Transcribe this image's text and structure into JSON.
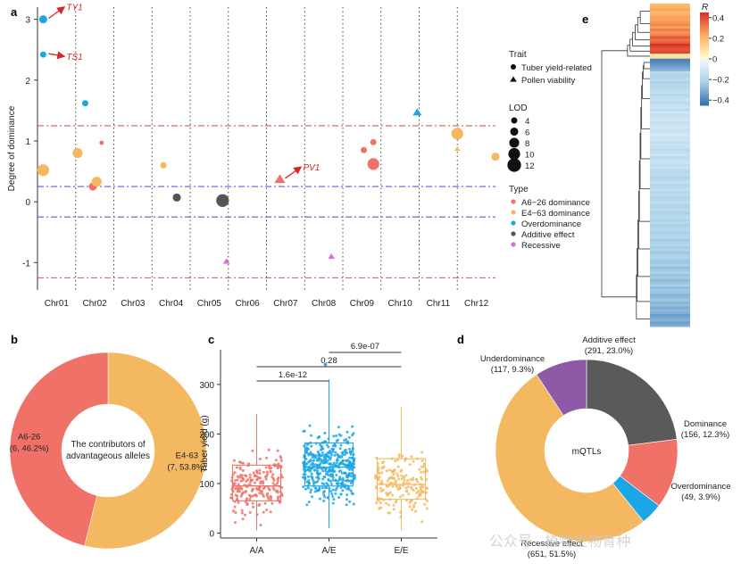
{
  "watermark": "公众号 · 植物生物育种",
  "colors": {
    "a6": "#f07167",
    "e4": "#f4b860",
    "over": "#1ba7e6",
    "add": "#555555",
    "rec": "#d66fd6",
    "under": "#8e5aa8",
    "addDark": "#5a5a5a",
    "redLine": "#e05656",
    "blueLine": "#5a5ae0"
  },
  "panel_labels": {
    "a": "a",
    "b": "b",
    "c": "c",
    "d": "d",
    "e": "e"
  },
  "chart_data": [
    {
      "id": "a",
      "type": "scatter",
      "title": "",
      "ylabel": "Degree of dominance",
      "xlabel": "",
      "ylim": [
        -1.45,
        3.2
      ],
      "yticks": [
        -1,
        0,
        1,
        2,
        3
      ],
      "categories": [
        "Chr01",
        "Chr02",
        "Chr03",
        "Chr04",
        "Chr05",
        "Chr06",
        "Chr07",
        "Chr08",
        "Chr09",
        "Chr10",
        "Chr11",
        "Chr12"
      ],
      "hlines": [
        {
          "y": 1.25,
          "color": "red"
        },
        {
          "y": -1.25,
          "color": "red"
        },
        {
          "y": 0.25,
          "color": "blue"
        },
        {
          "y": -0.25,
          "color": "blue"
        }
      ],
      "points": [
        {
          "x": 0.15,
          "y": 3.0,
          "shape": "circle",
          "type": "over",
          "lod": 6
        },
        {
          "x": 0.15,
          "y": 2.42,
          "shape": "circle",
          "type": "over",
          "lod": 4
        },
        {
          "x": 0.15,
          "y": 0.52,
          "shape": "circle",
          "type": "e4",
          "lod": 10
        },
        {
          "x": 1.25,
          "y": 1.62,
          "shape": "circle",
          "type": "over",
          "lod": 4
        },
        {
          "x": 1.05,
          "y": 0.8,
          "shape": "circle",
          "type": "e4",
          "lod": 8
        },
        {
          "x": 1.45,
          "y": 0.25,
          "shape": "circle",
          "type": "a6",
          "lod": 6
        },
        {
          "x": 1.55,
          "y": 0.33,
          "shape": "circle",
          "type": "e4",
          "lod": 8
        },
        {
          "x": 1.68,
          "y": 0.97,
          "shape": "circle",
          "type": "a6",
          "lod": 2
        },
        {
          "x": 3.3,
          "y": 0.6,
          "shape": "circle",
          "type": "e4",
          "lod": 4
        },
        {
          "x": 3.65,
          "y": 0.07,
          "shape": "circle",
          "type": "add",
          "lod": 6
        },
        {
          "x": 4.85,
          "y": 0.02,
          "shape": "circle",
          "type": "add",
          "lod": 11
        },
        {
          "x": 4.95,
          "y": -0.98,
          "shape": "triangle",
          "type": "rec",
          "lod": 4
        },
        {
          "x": 6.35,
          "y": 0.37,
          "shape": "triangle",
          "type": "a6",
          "lod": 8
        },
        {
          "x": 7.7,
          "y": -0.9,
          "shape": "triangle",
          "type": "rec",
          "lod": 4
        },
        {
          "x": 8.55,
          "y": 0.85,
          "shape": "circle",
          "type": "a6",
          "lod": 4
        },
        {
          "x": 8.8,
          "y": 0.98,
          "shape": "circle",
          "type": "a6",
          "lod": 4
        },
        {
          "x": 8.8,
          "y": 0.62,
          "shape": "circle",
          "type": "a6",
          "lod": 10
        },
        {
          "x": 9.95,
          "y": 1.47,
          "shape": "triangle",
          "type": "over",
          "lod": 6
        },
        {
          "x": 11.0,
          "y": 1.12,
          "shape": "circle",
          "type": "e4",
          "lod": 10
        },
        {
          "x": 11.0,
          "y": 0.87,
          "shape": "triangle",
          "type": "e4",
          "lod": 3
        },
        {
          "x": 12.0,
          "y": 0.74,
          "shape": "circle",
          "type": "e4",
          "lod": 6
        }
      ],
      "annotations": [
        {
          "label": "TY1",
          "pointIndex": 0
        },
        {
          "label": "TS1",
          "pointIndex": 1
        },
        {
          "label": "PV1",
          "pointIndex": 12
        }
      ],
      "legend": {
        "trait_title": "Trait",
        "trait_items": [
          {
            "label": "Tuber yield-related",
            "shape": "circle"
          },
          {
            "label": "Pollen viability",
            "shape": "triangle"
          }
        ],
        "lod_title": "LOD",
        "lod_items": [
          "4",
          "6",
          "8",
          "10",
          "12"
        ],
        "type_title": "Type",
        "type_items": [
          {
            "label": "A6−26 dominance",
            "type": "a6"
          },
          {
            "label": "E4−63 dominance",
            "type": "e4"
          },
          {
            "label": "Overdominance",
            "type": "over"
          },
          {
            "label": "Additive effect",
            "type": "add"
          },
          {
            "label": "Recessive",
            "type": "rec"
          }
        ]
      }
    },
    {
      "id": "b",
      "type": "pie",
      "center_text": [
        "The contributors of",
        "advantageous alleles"
      ],
      "slices": [
        {
          "name": "E4-63",
          "value": 7,
          "percent": "53.8%",
          "label_line1": "E4-63",
          "label_line2": "(7, 53.8%)",
          "type": "e4"
        },
        {
          "name": "A6-26",
          "value": 6,
          "percent": "46.2%",
          "label_line1": "A6-26",
          "label_line2": "(6, 46.2%)",
          "type": "a6"
        }
      ]
    },
    {
      "id": "c",
      "type": "box",
      "ylabel": "Tuber yield (g)",
      "ylim": [
        -10,
        370
      ],
      "yticks": [
        0,
        100,
        200,
        300
      ],
      "categories": [
        "A/A",
        "A/E",
        "E/E"
      ],
      "boxes": [
        {
          "category": "A/A",
          "q1": 65,
          "median": 95,
          "q3": 137,
          "whisker_low": 5,
          "whisker_high": 240,
          "type": "a6",
          "n_points": 210
        },
        {
          "category": "A/E",
          "q1": 95,
          "median": 133,
          "q3": 182,
          "whisker_low": 10,
          "whisker_high": 310,
          "type": "over",
          "n_points": 430
        },
        {
          "category": "E/E",
          "q1": 68,
          "median": 98,
          "q3": 150,
          "whisker_low": 5,
          "whisker_high": 255,
          "type": "e4",
          "n_points": 180
        }
      ],
      "outliers": [
        {
          "category": "A/E",
          "y": 340
        }
      ],
      "comparisons": [
        {
          "from": "A/A",
          "to": "A/E",
          "label": "1.6e-12",
          "level": 1
        },
        {
          "from": "A/A",
          "to": "E/E",
          "label": "0.28",
          "level": 2
        },
        {
          "from": "A/E",
          "to": "E/E",
          "label": "6.9e-07",
          "level": 3
        }
      ]
    },
    {
      "id": "d",
      "type": "pie",
      "center_text": [
        "mQTLs"
      ],
      "slices": [
        {
          "name": "Additive effect",
          "value": 291,
          "label_line1": "Additive effect",
          "label_line2": "(291, 23.0%)",
          "type": "addDark"
        },
        {
          "name": "Dominance",
          "value": 156,
          "label_line1": "Dominance",
          "label_line2": "(156, 12.3%)",
          "type": "a6"
        },
        {
          "name": "Overdominance",
          "value": 49,
          "label_line1": "Overdominance",
          "label_line2": "(49, 3.9%)",
          "type": "over"
        },
        {
          "name": "Recessive effect",
          "value": 651,
          "label_line1": "Recessive effect",
          "label_line2": "(651, 51.5%)",
          "type": "e4"
        },
        {
          "name": "Underdominance",
          "value": 117,
          "label_line1": "Underdominance",
          "label_line2": "(117, 9.3%)",
          "type": "under"
        }
      ]
    },
    {
      "id": "e",
      "type": "heatmap",
      "colorbar_title": "R",
      "colorbar_ticks": [
        "0.4",
        "0.2",
        "0",
        "−0.2",
        "−0.4"
      ],
      "colorbar_values": [
        0.4,
        0.2,
        0,
        -0.2,
        -0.4
      ],
      "range": [
        -0.45,
        0.45
      ],
      "rows": [
        {
          "count": 6,
          "r": 0.22
        },
        {
          "count": 4,
          "r": 0.26
        },
        {
          "count": 3,
          "r": 0.3
        },
        {
          "count": 3,
          "r": 0.36
        },
        {
          "count": 2,
          "r": 0.42
        },
        {
          "count": 2,
          "r": 0.38
        },
        {
          "count": 2,
          "r": 0.08
        },
        {
          "count": 3,
          "r": -0.38
        },
        {
          "count": 2,
          "r": -0.3
        },
        {
          "count": 6,
          "r": -0.2
        },
        {
          "count": 10,
          "r": -0.16
        },
        {
          "count": 14,
          "r": -0.12
        },
        {
          "count": 10,
          "r": -0.15
        },
        {
          "count": 14,
          "r": -0.18
        },
        {
          "count": 12,
          "r": -0.2
        },
        {
          "count": 10,
          "r": -0.22
        },
        {
          "count": 12,
          "r": -0.25
        },
        {
          "count": 8,
          "r": -0.28
        },
        {
          "count": 6,
          "r": -0.32
        }
      ]
    }
  ]
}
